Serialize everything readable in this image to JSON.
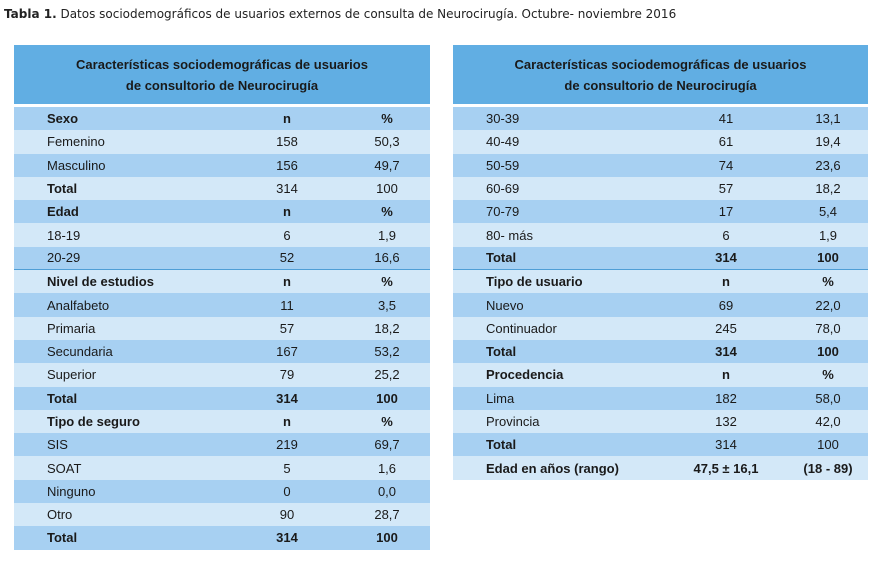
{
  "caption": {
    "label": "Tabla 1.",
    "text": "Datos sociodemográficos de usuarios externos de consulta de Neurocirugía. Octubre- noviembre 2016"
  },
  "colors": {
    "header": "#61aee3",
    "row_dark": "#a7d0f2",
    "row_light": "#d3e8f8"
  },
  "left_table": {
    "header_line1": "Características sociodemográficas de usuarios",
    "header_line2": "de consultorio de Neurocirugía",
    "rows": [
      {
        "label": "Sexo",
        "n": "n",
        "pct": "%",
        "bold": true
      },
      {
        "label": "Femenino",
        "n": "158",
        "pct": "50,3"
      },
      {
        "label": "Masculino",
        "n": "156",
        "pct": "49,7"
      },
      {
        "label": "Total",
        "n": "314",
        "pct": "100",
        "bold_label": true
      },
      {
        "label": "Edad",
        "n": "n",
        "pct": "%",
        "bold": true
      },
      {
        "label": "18-19",
        "n": "6",
        "pct": "1,9"
      },
      {
        "label": "20-29",
        "n": "52",
        "pct": "16,6",
        "sep": true
      },
      {
        "label": "Nivel de estudios",
        "n": "n",
        "pct": "%",
        "bold": true
      },
      {
        "label": "Analfabeto",
        "n": "11",
        "pct": "3,5"
      },
      {
        "label": "Primaria",
        "n": "57",
        "pct": "18,2"
      },
      {
        "label": "Secundaria",
        "n": "167",
        "pct": "53,2"
      },
      {
        "label": "Superior",
        "n": "79",
        "pct": "25,2"
      },
      {
        "label": "Total",
        "n": "314",
        "pct": "100",
        "bold": true
      },
      {
        "label": "Tipo de seguro",
        "n": "n",
        "pct": "%",
        "bold": true
      },
      {
        "label": "SIS",
        "n": "219",
        "pct": "69,7"
      },
      {
        "label": "SOAT",
        "n": "5",
        "pct": "1,6"
      },
      {
        "label": "Ninguno",
        "n": "0",
        "pct": "0,0"
      },
      {
        "label": "Otro",
        "n": "90",
        "pct": "28,7"
      },
      {
        "label": "Total",
        "n": "314",
        "pct": "100",
        "bold": true
      }
    ]
  },
  "right_table": {
    "header_line1": "Características sociodemográficas de usuarios",
    "header_line2": "de consultorio de Neurocirugía",
    "rows": [
      {
        "label": "30-39",
        "n": "41",
        "pct": "13,1"
      },
      {
        "label": "40-49",
        "n": "61",
        "pct": "19,4"
      },
      {
        "label": "50-59",
        "n": "74",
        "pct": "23,6"
      },
      {
        "label": "60-69",
        "n": "57",
        "pct": "18,2"
      },
      {
        "label": "70-79",
        "n": "17",
        "pct": "5,4"
      },
      {
        "label": "80- más",
        "n": "6",
        "pct": "1,9"
      },
      {
        "label": "Total",
        "n": "314",
        "pct": "100",
        "bold": true,
        "sep": true
      },
      {
        "label": "Tipo de usuario",
        "n": "n",
        "pct": "%",
        "bold": true
      },
      {
        "label": "Nuevo",
        "n": "69",
        "pct": "22,0"
      },
      {
        "label": "Continuador",
        "n": "245",
        "pct": "78,0"
      },
      {
        "label": "Total",
        "n": "314",
        "pct": "100",
        "bold": true
      },
      {
        "label": "Procedencia",
        "n": "n",
        "pct": "%",
        "bold": true
      },
      {
        "label": "Lima",
        "n": "182",
        "pct": "58,0"
      },
      {
        "label": "Provincia",
        "n": "132",
        "pct": "42,0"
      },
      {
        "label": "Total",
        "n": "314",
        "pct": "100",
        "bold_label": true
      },
      {
        "label": "Edad en años (rango)",
        "n": "47,5 ± 16,1",
        "pct": "(18 - 89)",
        "bold": true
      }
    ]
  }
}
